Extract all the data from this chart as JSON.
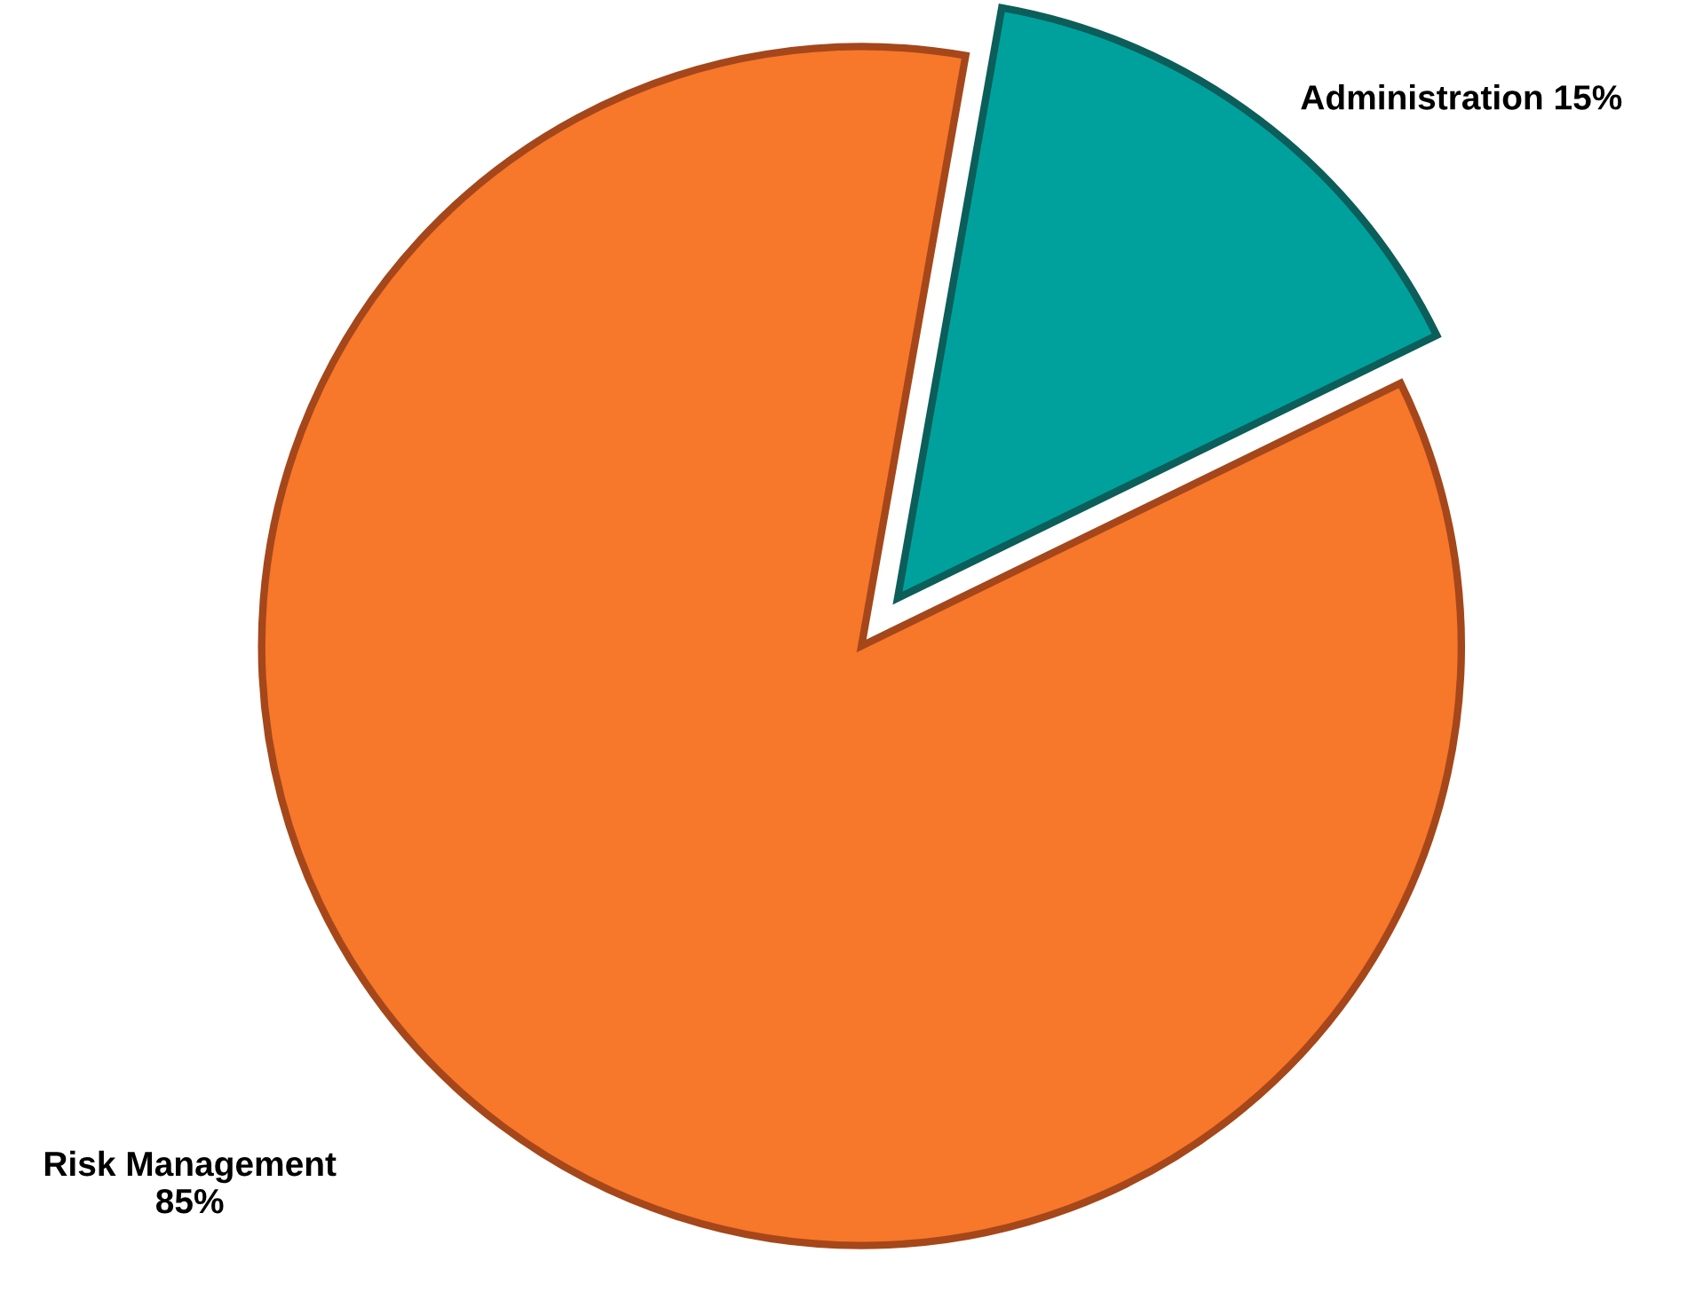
{
  "chart_data": {
    "type": "pie",
    "categories": [
      "Administration",
      "Risk Management"
    ],
    "values": [
      15,
      85
    ],
    "value_labels": [
      "15%",
      "85%"
    ],
    "colors": [
      "#00a19c",
      "#f7772b"
    ]
  }
}
